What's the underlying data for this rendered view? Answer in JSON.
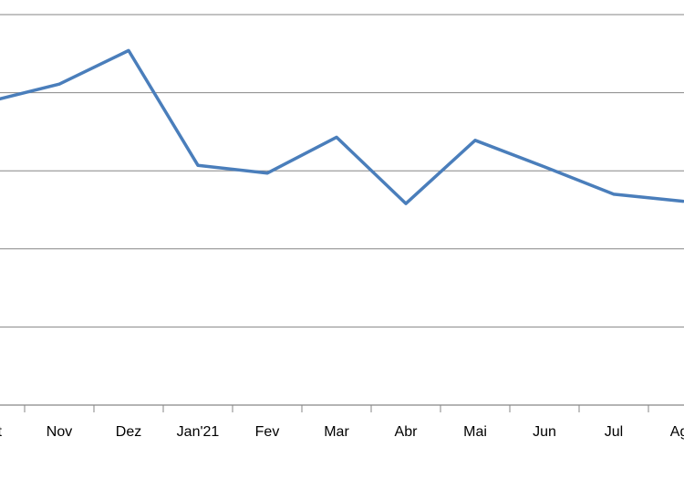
{
  "chart_data": {
    "type": "line",
    "title": "",
    "xlabel": "",
    "ylabel": "",
    "categories": [
      "Out",
      "Nov",
      "Dez",
      "Jan'21",
      "Fev",
      "Mar",
      "Abr",
      "Mai",
      "Jun",
      "Jul",
      "Ago"
    ],
    "series": [
      {
        "values": [
          3.89,
          4.11,
          4.54,
          3.07,
          2.97,
          3.43,
          2.58,
          3.39,
          3.05,
          2.7,
          2.61
        ],
        "color": "#4a7ebb"
      }
    ],
    "ylim": [
      0,
      5
    ],
    "y_gridlines": [
      1,
      2,
      3,
      4,
      5
    ],
    "grid": true,
    "legend": "none",
    "colors": {
      "line": "#4a7ebb",
      "grid": "#868686",
      "axis": "#868686"
    }
  }
}
